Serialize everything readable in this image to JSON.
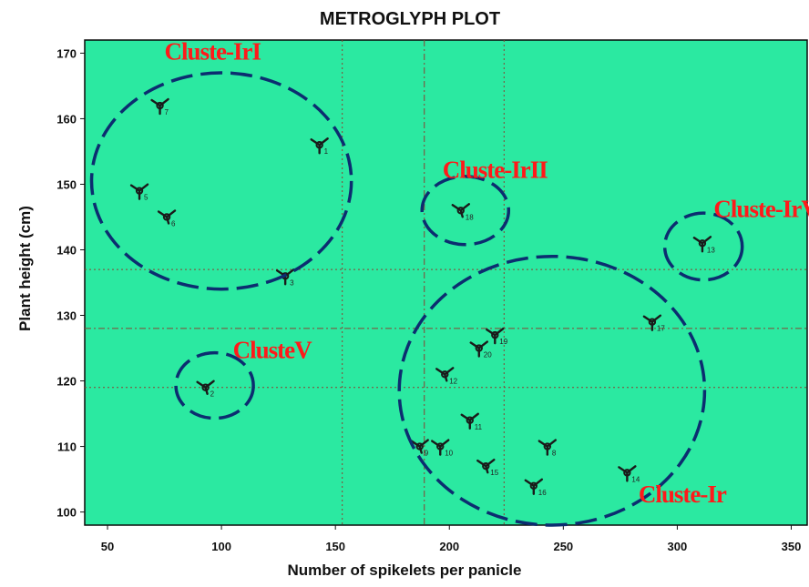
{
  "chart_data": {
    "type": "scatter",
    "title": "METROGLYPH PLOT",
    "xlabel": "Number of spikelets per panicle",
    "ylabel": "Plant height (cm)",
    "xlim": [
      40,
      357
    ],
    "ylim": [
      98,
      172
    ],
    "xticks": [
      50,
      100,
      150,
      200,
      250,
      300,
      350
    ],
    "yticks": [
      100,
      110,
      120,
      130,
      140,
      150,
      160,
      170
    ],
    "grid": false,
    "background_color": "#2be9a1",
    "reference_lines": {
      "vertical_dotted": [
        153,
        224
      ],
      "vertical_dashdot": [
        189
      ],
      "horizontal_dotted": [
        137,
        119
      ],
      "horizontal_dashdot": [
        128
      ]
    },
    "points": [
      {
        "label": "1",
        "x": 143,
        "y": 156
      },
      {
        "label": "2",
        "x": 93,
        "y": 119
      },
      {
        "label": "3",
        "x": 128,
        "y": 136
      },
      {
        "label": "5",
        "x": 64,
        "y": 149
      },
      {
        "label": "6",
        "x": 76,
        "y": 145
      },
      {
        "label": "7",
        "x": 73,
        "y": 162
      },
      {
        "label": "8",
        "x": 243,
        "y": 110
      },
      {
        "label": "9",
        "x": 187,
        "y": 110
      },
      {
        "label": "10",
        "x": 196,
        "y": 110
      },
      {
        "label": "11",
        "x": 209,
        "y": 114
      },
      {
        "label": "12",
        "x": 198,
        "y": 121
      },
      {
        "label": "13",
        "x": 311,
        "y": 141
      },
      {
        "label": "14",
        "x": 278,
        "y": 106
      },
      {
        "label": "15",
        "x": 216,
        "y": 107
      },
      {
        "label": "16",
        "x": 237,
        "y": 104
      },
      {
        "label": "17",
        "x": 289,
        "y": 129
      },
      {
        "label": "18",
        "x": 205,
        "y": 146
      },
      {
        "label": "19",
        "x": 220,
        "y": 127
      },
      {
        "label": "20",
        "x": 213,
        "y": 125
      }
    ],
    "clusters": [
      {
        "label": "Cluste-IrI",
        "center": [
          100,
          150.5
        ],
        "radius": [
          57,
          16.5
        ],
        "label_at": [
          75,
          169
        ]
      },
      {
        "label": "Cluste-IrII",
        "center": [
          207,
          146
        ],
        "radius": [
          19,
          5.2
        ],
        "label_at": [
          197,
          151
        ]
      },
      {
        "label": "Cluste-IrV",
        "center": [
          311.5,
          140.5
        ],
        "radius": [
          17,
          5.1
        ],
        "label_at": [
          316,
          145
        ]
      },
      {
        "label": "ClusteV",
        "center": [
          97,
          119.3
        ],
        "radius": [
          17,
          5
        ],
        "label_at": [
          105,
          123.5
        ]
      },
      {
        "label": "Cluste-Ir",
        "center": [
          245,
          118.5
        ],
        "radius": [
          67,
          20.5
        ],
        "label_at": [
          283,
          101.5
        ]
      }
    ],
    "colors": {
      "cluster_outline": "#0c2d70",
      "cluster_text": "#ff1a1a",
      "reference_line": "#884433",
      "glyph": "#1a1a1a"
    }
  }
}
